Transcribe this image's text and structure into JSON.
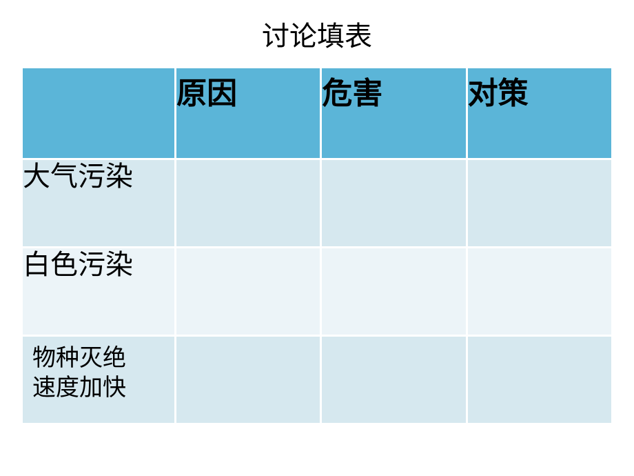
{
  "slide": {
    "title": "讨论填表",
    "title_fontsize": 40,
    "title_color": "#000000",
    "background_color": "#ffffff"
  },
  "table": {
    "type": "table",
    "header_bg_color": "#5bb5d8",
    "row_odd_bg_color": "#d6e8ef",
    "row_even_bg_color": "#ecf4f8",
    "header_fontsize": 44,
    "header_fontweight": "bold",
    "row_label_fontsize": 40,
    "row_label_two_line_fontsize": 34,
    "text_color": "#000000",
    "border_spacing": 3,
    "columns": [
      {
        "label": "",
        "width_pct": 26
      },
      {
        "label": "原因",
        "width_pct": 24.6
      },
      {
        "label": "危害",
        "width_pct": 24.6
      },
      {
        "label": "对策",
        "width_pct": 24.6
      }
    ],
    "rows": [
      {
        "label": "大气污染",
        "cells": [
          "",
          "",
          ""
        ]
      },
      {
        "label": "白色污染",
        "cells": [
          "",
          "",
          ""
        ]
      },
      {
        "label": "物种灭绝速度加快",
        "label_line1": "物种灭绝",
        "label_line2": "速度加快",
        "cells": [
          "",
          "",
          ""
        ]
      }
    ]
  }
}
